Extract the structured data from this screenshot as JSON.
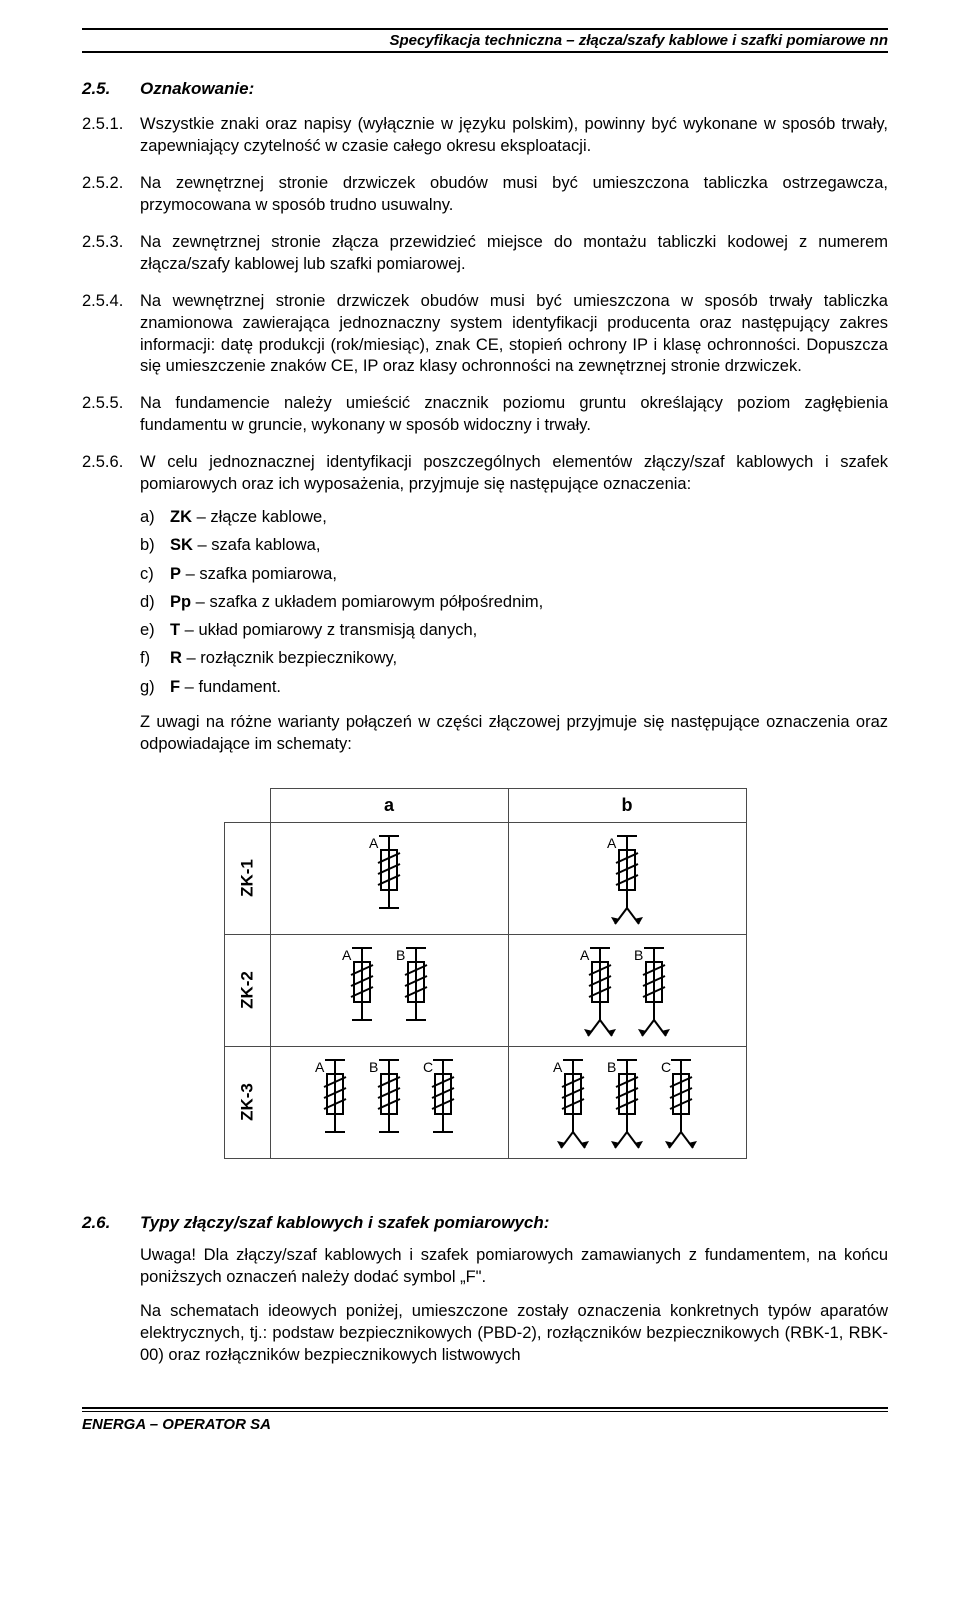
{
  "header": {
    "title": "Specyfikacja techniczna – złącza/szafy kablowe i szafki pomiarowe nn"
  },
  "section25": {
    "num": "2.5.",
    "title": "Oznakowanie:"
  },
  "items": {
    "i251": {
      "num": "2.5.1.",
      "text": "Wszystkie znaki oraz napisy (wyłącznie w języku polskim), powinny być wykonane w sposób trwały, zapewniający czytelność w czasie całego okresu eksploatacji."
    },
    "i252": {
      "num": "2.5.2.",
      "text": "Na zewnętrznej stronie drzwiczek obudów musi być umieszczona tabliczka ostrzegawcza, przymocowana w sposób trudno usuwalny."
    },
    "i253": {
      "num": "2.5.3.",
      "text": "Na zewnętrznej stronie złącza przewidzieć miejsce do montażu tabliczki kodowej z numerem złącza/szafy kablowej lub szafki pomiarowej."
    },
    "i254": {
      "num": "2.5.4.",
      "text": "Na wewnętrznej stronie drzwiczek obudów musi być umieszczona w sposób trwały tabliczka znamionowa zawierająca jednoznaczny system identyfikacji producenta oraz następujący zakres informacji: datę produkcji (rok/miesiąc), znak CE, stopień ochrony IP i klasę ochronności. Dopuszcza się umieszczenie znaków CE, IP oraz klasy ochronności na zewnętrznej stronie drzwiczek."
    },
    "i255": {
      "num": "2.5.5.",
      "text": "Na fundamencie należy umieścić znacznik poziomu gruntu określający poziom zagłębienia fundamentu w gruncie, wykonany w sposób widoczny i trwały."
    },
    "i256": {
      "num": "2.5.6.",
      "text": "W celu jednoznacznej identyfikacji poszczególnych elementów złączy/szaf kablowych i szafek pomiarowych oraz ich wyposażenia, przyjmuje się następujące oznaczenia:"
    }
  },
  "sublist": {
    "a": {
      "key": "a)",
      "bold": "ZK",
      "rest": " – złącze kablowe,"
    },
    "b": {
      "key": "b)",
      "bold": "SK",
      "rest": " – szafa kablowa,"
    },
    "c": {
      "key": "c)",
      "bold": "P",
      "rest": " – szafka pomiarowa,"
    },
    "d": {
      "key": "d)",
      "bold": "Pp",
      "rest": " – szafka z układem pomiarowym półpośrednim,"
    },
    "e": {
      "key": "e)",
      "bold": "T",
      "rest": " – układ pomiarowy z transmisją danych,"
    },
    "f": {
      "key": "f)",
      "bold": "R",
      "rest": " – rozłącznik bezpiecznikowy,"
    },
    "g": {
      "key": "g)",
      "bold": "F",
      "rest": " – fundament."
    }
  },
  "para_after_list": "Z uwagi na różne warianty połączeń w części złączowej przyjmuje się następujące oznaczenia oraz odpowiadające im schematy:",
  "table": {
    "col_a": "a",
    "col_b": "b",
    "rows": [
      {
        "label": "ZK-1",
        "a_letters": [
          "A"
        ],
        "b_letters": [
          "A"
        ],
        "b_arrows": true
      },
      {
        "label": "ZK-2",
        "a_letters": [
          "A",
          "B"
        ],
        "b_letters": [
          "A",
          "B"
        ],
        "b_arrows": true
      },
      {
        "label": "ZK-3",
        "a_letters": [
          "A",
          "B",
          "C"
        ],
        "b_letters": [
          "A",
          "B",
          "C"
        ],
        "b_arrows": true
      }
    ],
    "stroke": "#000000",
    "cell_bg": "#ffffff"
  },
  "section26": {
    "num": "2.6.",
    "title": "Typy złączy/szaf kablowych i szafek pomiarowych:",
    "uw1": "Uwaga! Dla złączy/szaf kablowych i szafek pomiarowych zamawianych z fundamentem, na końcu poniższych oznaczeń należy dodać symbol „F\".",
    "uw2": "Na schematach ideowych poniżej, umieszczone zostały oznaczenia konkretnych typów aparatów elektrycznych, tj.: podstaw bezpiecznikowych (PBD-2), rozłączników bezpiecznikowych (RBK-1, RBK-00) oraz rozłączników bezpiecznikowych listwowych"
  },
  "footer": {
    "text": "ENERGA – OPERATOR SA"
  }
}
